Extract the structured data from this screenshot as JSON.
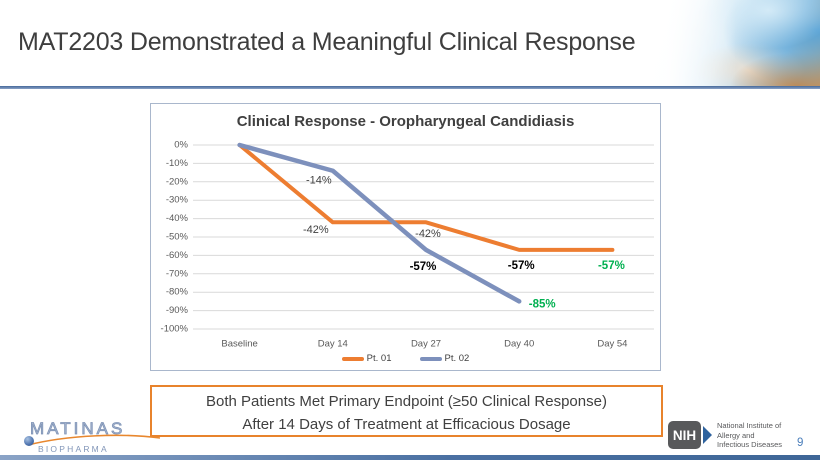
{
  "slide": {
    "title": "MAT2203 Demonstrated a Meaningful Clinical Response",
    "page_number": "9"
  },
  "chart_data": {
    "type": "line",
    "title": "Clinical Response - Oropharyngeal Candidiasis",
    "categories": [
      "Baseline",
      "Day 14",
      "Day 27",
      "Day 40",
      "Day 54"
    ],
    "yticks": [
      "0%",
      "-10%",
      "-20%",
      "-30%",
      "-40%",
      "-50%",
      "-60%",
      "-70%",
      "-80%",
      "-90%",
      "-100%"
    ],
    "ylim": [
      -100,
      0
    ],
    "grid": true,
    "legend_position": "bottom",
    "label_green": "#00B050",
    "series": [
      {
        "name": "Pt. 01",
        "color": "#ED7D31",
        "values": [
          0,
          -42,
          -42,
          -57,
          -57
        ],
        "labels": [
          {
            "i": 1,
            "text": "-42%",
            "dx": -17,
            "dy": 8,
            "color": "#404040",
            "bold": false
          },
          {
            "i": 2,
            "text": "-42%",
            "dx": 2,
            "dy": 12,
            "color": "#404040",
            "bold": false
          },
          {
            "i": 3,
            "text": "-57%",
            "dx": 2,
            "dy": 16,
            "color": "#000000",
            "bold": true
          },
          {
            "i": 4,
            "text": "-57%",
            "dx": -1,
            "dy": 16,
            "color": "#00B050",
            "bold": true
          }
        ]
      },
      {
        "name": "Pt. 02",
        "color": "#7D90BC",
        "values": [
          0,
          -14,
          -57,
          -85,
          null
        ],
        "labels": [
          {
            "i": 1,
            "text": "-14%",
            "dx": -14,
            "dy": 10,
            "color": "#404040",
            "bold": false
          },
          {
            "i": 2,
            "text": "-57%",
            "dx": -3,
            "dy": 17,
            "color": "#000000",
            "bold": true
          },
          {
            "i": 3,
            "text": "-85%",
            "dx": 23,
            "dy": 3,
            "color": "#00B050",
            "bold": true
          }
        ]
      }
    ]
  },
  "callout": {
    "border_color": "#E8832C",
    "line1": "Both Patients Met Primary Endpoint (≥50 Clinical Response)",
    "line2": "After 14 Days of Treatment at Efficacious Dosage"
  },
  "footer": {
    "matinas": {
      "name": "MATINAS",
      "sub": "BIOPHARMA"
    },
    "nih": {
      "abbr": "NIH",
      "line1": "National Institute of",
      "line2": "Allergy and",
      "line3": "Infectious Diseases"
    }
  }
}
